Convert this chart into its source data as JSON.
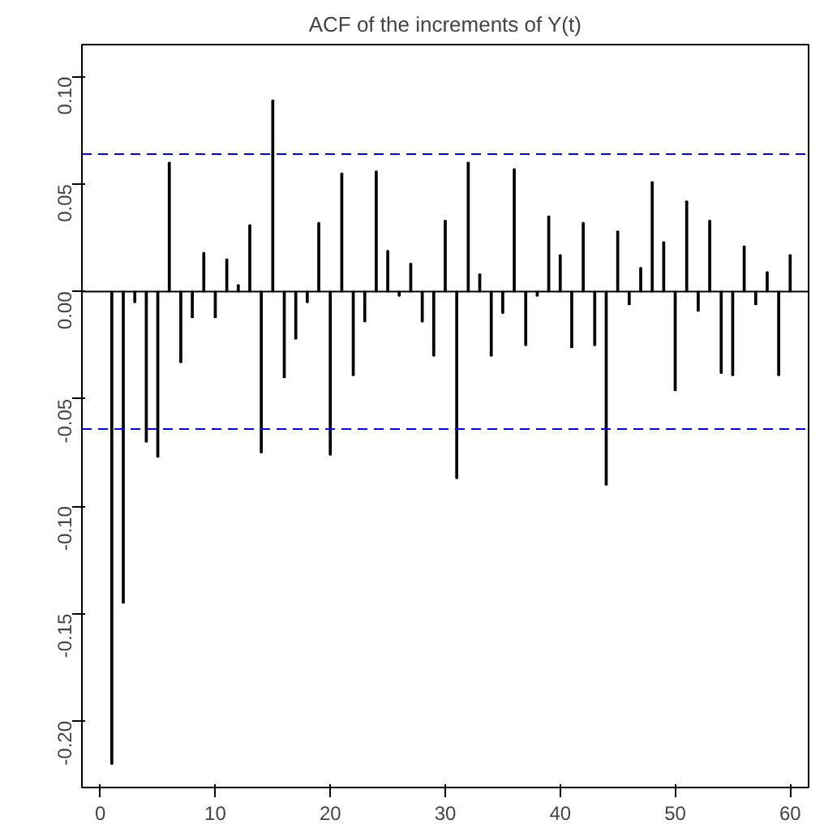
{
  "chart_data": {
    "type": "bar",
    "title": "ACF of the increments of Y(t)",
    "x": [
      1,
      2,
      3,
      4,
      5,
      6,
      7,
      8,
      9,
      10,
      11,
      12,
      13,
      14,
      15,
      16,
      17,
      18,
      19,
      20,
      21,
      22,
      23,
      24,
      25,
      26,
      27,
      28,
      29,
      30,
      31,
      32,
      33,
      34,
      35,
      36,
      37,
      38,
      39,
      40,
      41,
      42,
      43,
      44,
      45,
      46,
      47,
      48,
      49,
      50,
      51,
      52,
      53,
      54,
      55,
      56,
      57,
      58,
      59,
      60
    ],
    "values": [
      -0.22,
      -0.145,
      -0.005,
      -0.07,
      -0.077,
      0.06,
      -0.033,
      -0.012,
      0.018,
      -0.012,
      0.015,
      0.003,
      0.031,
      -0.075,
      0.089,
      -0.04,
      -0.022,
      -0.005,
      0.032,
      -0.076,
      0.055,
      -0.039,
      -0.014,
      0.056,
      0.019,
      -0.002,
      0.013,
      -0.014,
      -0.03,
      0.033,
      -0.087,
      0.06,
      0.008,
      -0.03,
      -0.01,
      0.057,
      -0.025,
      -0.002,
      0.035,
      0.017,
      -0.026,
      0.032,
      -0.025,
      -0.09,
      0.028,
      -0.006,
      0.011,
      0.051,
      0.023,
      -0.046,
      0.042,
      -0.009,
      0.033,
      -0.038,
      -0.039,
      0.021,
      -0.006,
      0.009,
      -0.039,
      0.017
    ],
    "color": "#000000",
    "xlim": [
      -1.6,
      61.6
    ],
    "ylim": [
      -0.231,
      0.115
    ],
    "xticks": [
      0,
      10,
      20,
      30,
      40,
      50,
      60
    ],
    "yticks": [
      {
        "value": -0.2,
        "label": "-0.20"
      },
      {
        "value": -0.15,
        "label": "-0.15"
      },
      {
        "value": -0.1,
        "label": "-0.10"
      },
      {
        "value": -0.05,
        "label": "-0.05"
      },
      {
        "value": 0,
        "label": "0.00"
      },
      {
        "value": 0.05,
        "label": "0.05"
      },
      {
        "value": 0.1,
        "label": "0.10"
      }
    ],
    "ref_lines": [
      {
        "axis": "y",
        "value": 0,
        "color": "#000000",
        "line_style": "solid"
      },
      {
        "axis": "y",
        "value": 0.064,
        "color": "#0000ff",
        "line_style": "dashed"
      },
      {
        "axis": "y",
        "value": -0.064,
        "color": "#0000ff",
        "line_style": "dashed"
      }
    ],
    "grid": false
  }
}
